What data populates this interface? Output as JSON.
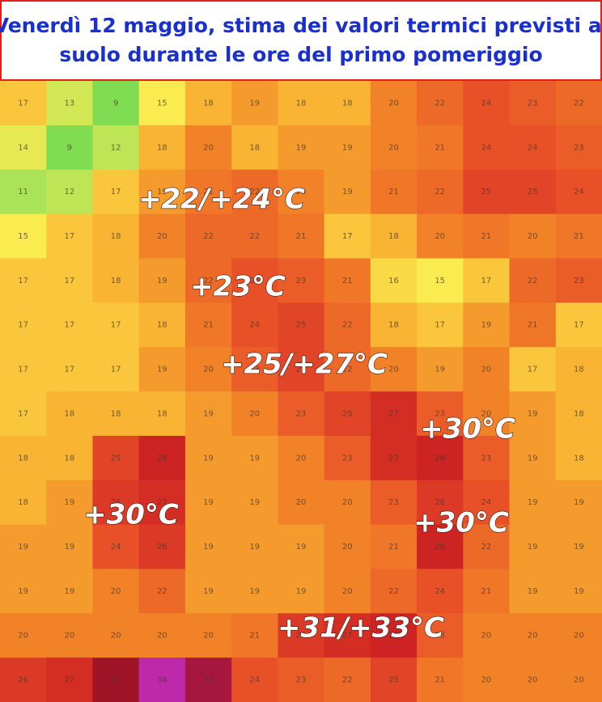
{
  "header": {
    "title_lines": [
      "Venerdì 12 maggio, stima dei valori termici previsti al",
      "suolo durante le ore del primo pomeriggio"
    ]
  },
  "map": {
    "grid": [
      [
        17,
        13,
        9,
        15,
        18,
        19,
        18,
        18,
        20,
        22,
        24,
        23,
        22
      ],
      [
        14,
        9,
        12,
        18,
        20,
        18,
        19,
        19,
        20,
        21,
        24,
        24,
        23
      ],
      [
        11,
        12,
        17,
        19,
        21,
        22,
        20,
        19,
        21,
        22,
        25,
        25,
        24
      ],
      [
        15,
        17,
        18,
        20,
        22,
        22,
        21,
        17,
        18,
        20,
        21,
        20,
        21
      ],
      [
        17,
        17,
        18,
        19,
        22,
        24,
        23,
        21,
        16,
        15,
        17,
        22,
        23
      ],
      [
        17,
        17,
        17,
        18,
        21,
        24,
        25,
        22,
        18,
        17,
        19,
        21,
        17
      ],
      [
        17,
        17,
        17,
        19,
        20,
        23,
        25,
        22,
        20,
        19,
        20,
        17,
        18
      ],
      [
        17,
        18,
        18,
        18,
        19,
        20,
        23,
        25,
        27,
        23,
        20,
        19,
        18
      ],
      [
        18,
        18,
        25,
        28,
        19,
        19,
        20,
        23,
        27,
        28,
        23,
        19,
        18
      ],
      [
        18,
        19,
        26,
        27,
        19,
        19,
        20,
        20,
        23,
        26,
        24,
        19,
        19
      ],
      [
        19,
        19,
        24,
        26,
        19,
        19,
        19,
        20,
        21,
        28,
        22,
        19,
        19
      ],
      [
        19,
        19,
        20,
        22,
        19,
        19,
        19,
        20,
        22,
        24,
        21,
        19,
        19
      ],
      [
        20,
        20,
        20,
        20,
        20,
        21,
        26,
        27,
        28,
        23,
        20,
        20,
        20
      ],
      [
        26,
        27,
        32,
        38,
        33,
        24,
        23,
        22,
        25,
        21,
        20,
        20,
        20
      ]
    ],
    "labels": [
      "+22/+24°C",
      "+23°C",
      "+25/+27°C",
      "+30°C",
      "+30°C",
      "+30°C",
      "+31/+33°C"
    ]
  }
}
